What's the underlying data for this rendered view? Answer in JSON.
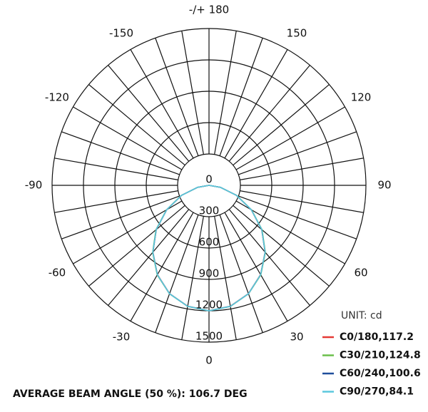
{
  "chart_data": {
    "type": "polar",
    "unit_label": "UNIT: cd",
    "annotation": "AVERAGE BEAM ANGLE (50 %): 106.7 DEG",
    "angle_ticks": [
      0,
      30,
      60,
      90,
      120,
      150,
      {
        "value": 180,
        "label": "-/+ 180"
      },
      -150,
      -120,
      -90,
      -60,
      -30
    ],
    "rlim": [
      0,
      1500
    ],
    "rticks": [
      0,
      300,
      600,
      900,
      1200,
      1500
    ],
    "x": [
      -90,
      -80,
      -70,
      -60,
      -50,
      -40,
      -30,
      -20,
      -10,
      0,
      10,
      20,
      30,
      40,
      50,
      60,
      70,
      80,
      90
    ],
    "series": [
      {
        "name": "C0/180,117.2",
        "color": "#e53935",
        "values": [
          0,
          110,
          278,
          466,
          657,
          834,
          986,
          1102,
          1174,
          1200,
          1174,
          1102,
          986,
          834,
          657,
          466,
          278,
          110,
          0
        ]
      },
      {
        "name": "C30/210,124.8",
        "color": "#6abf4b",
        "values": [
          0,
          112,
          282,
          470,
          662,
          838,
          990,
          1104,
          1176,
          1200,
          1176,
          1104,
          990,
          838,
          662,
          470,
          282,
          112,
          0
        ]
      },
      {
        "name": "C60/240,100.6",
        "color": "#1f4e9c",
        "values": [
          0,
          111,
          279,
          467,
          658,
          835,
          987,
          1103,
          1175,
          1200,
          1175,
          1103,
          987,
          835,
          658,
          467,
          279,
          111,
          0
        ]
      },
      {
        "name": "C90/270,84.1",
        "color": "#5bc8dd",
        "values": [
          0,
          111,
          279,
          467,
          658,
          835,
          987,
          1103,
          1175,
          1200,
          1175,
          1103,
          987,
          835,
          658,
          467,
          279,
          111,
          0
        ]
      }
    ]
  }
}
